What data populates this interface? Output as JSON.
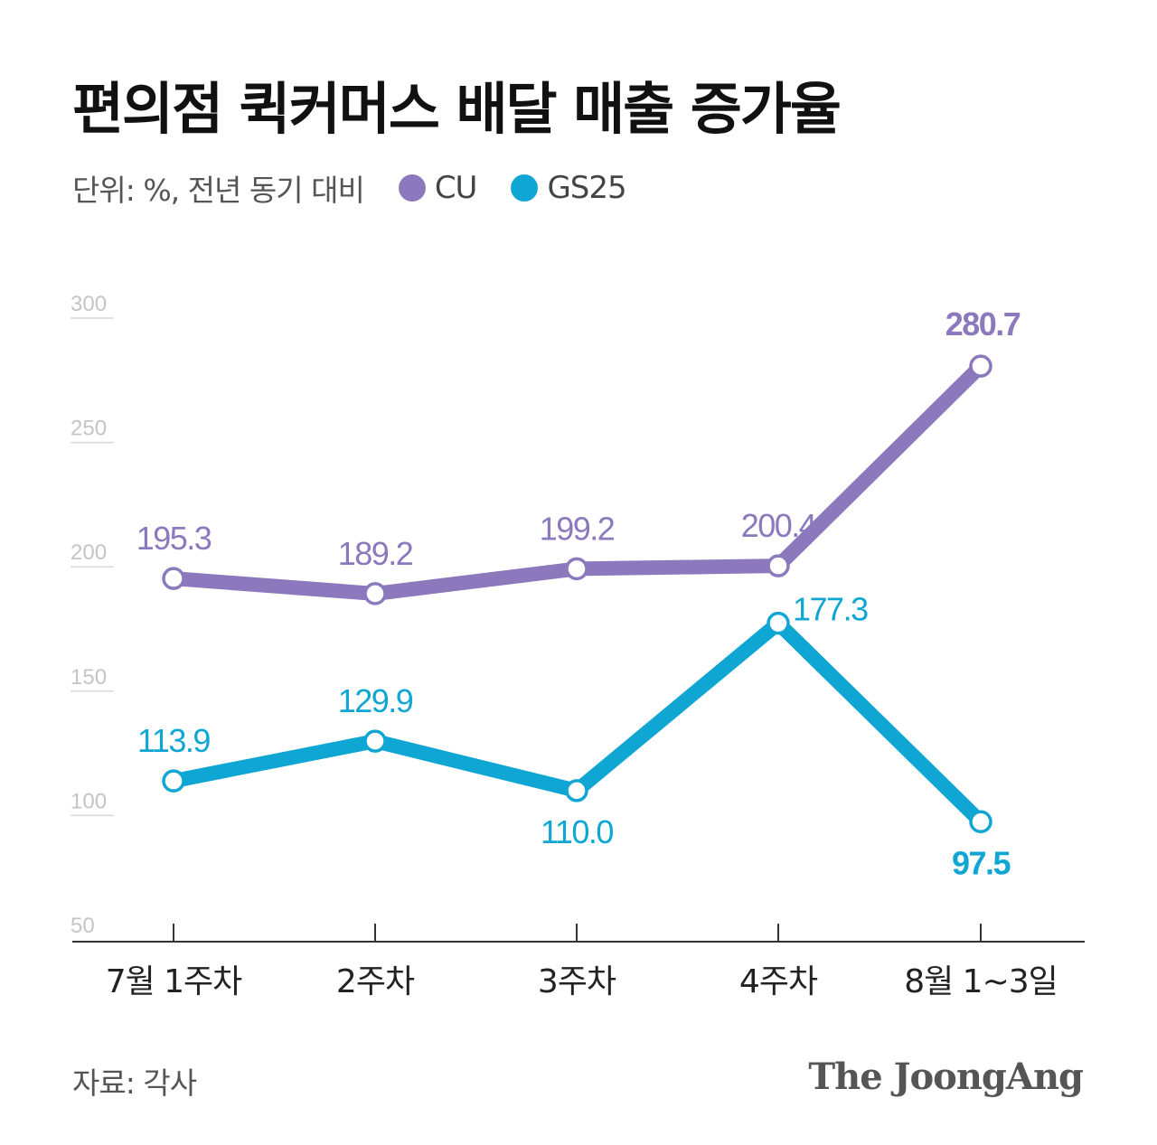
{
  "title": "편의점 퀵커머스 배달 매출 증가율",
  "unit_label": "단위: %, 전년 동기 대비",
  "source_label": "자료: 각사",
  "logo_text": "The JoongAng",
  "colors": {
    "cu": "#8b78bd",
    "gs25": "#0fa6d3",
    "grid": "#d9d9d9",
    "tick": "#c4c4c4",
    "axis": "#333333"
  },
  "chart_data": {
    "type": "line",
    "categories": [
      "7월 1주차",
      "2주차",
      "3주차",
      "4주차",
      "8월 1~3일"
    ],
    "series": [
      {
        "name": "CU",
        "values": [
          195.3,
          189.2,
          199.2,
          200.4,
          280.7
        ],
        "labels": [
          "195.3",
          "189.2",
          "199.2",
          "200.4",
          "280.7"
        ]
      },
      {
        "name": "GS25",
        "values": [
          113.9,
          129.9,
          110.0,
          177.3,
          97.5
        ],
        "labels": [
          "113.9",
          "129.9",
          "110.0",
          "177.3",
          "97.5"
        ]
      }
    ],
    "yticks": [
      50,
      100,
      150,
      200,
      250,
      300
    ],
    "ytick_labels": [
      "50",
      "100",
      "150",
      "200",
      "250",
      "300"
    ],
    "ylim": [
      50,
      300
    ],
    "legend": "top-left",
    "grid": false
  }
}
